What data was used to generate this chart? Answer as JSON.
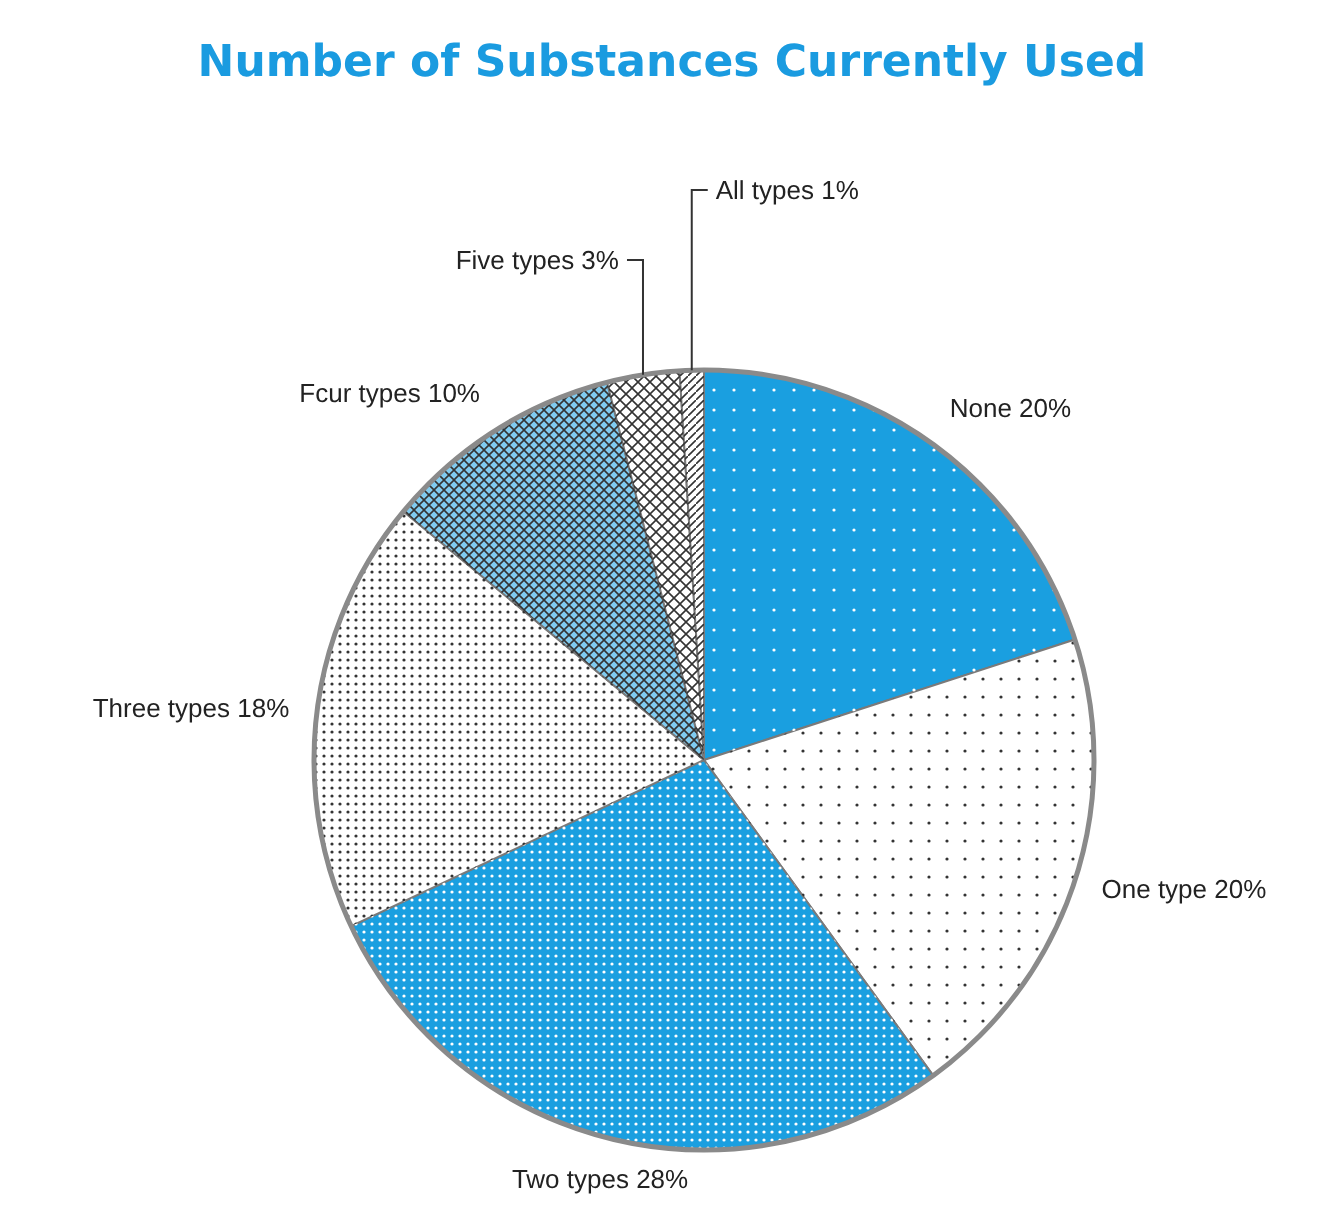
{
  "chart_data": {
    "type": "pie",
    "title": "Number of Substances Currently Used",
    "categories": [
      "None",
      "One type",
      "Two types",
      "Three types",
      "Fcur types",
      "Five types",
      "All types"
    ],
    "values": [
      20,
      20,
      28,
      18,
      10,
      3,
      1
    ],
    "value_labels": [
      "20%",
      "20%",
      "28%",
      "18%",
      "10%",
      "3%",
      "1%"
    ],
    "colors": [
      "#1a9fe0",
      "#ffffff",
      "#1a9fe0",
      "#ffffff",
      "#7fcbf0",
      "#ffffff",
      "#ffffff"
    ]
  }
}
